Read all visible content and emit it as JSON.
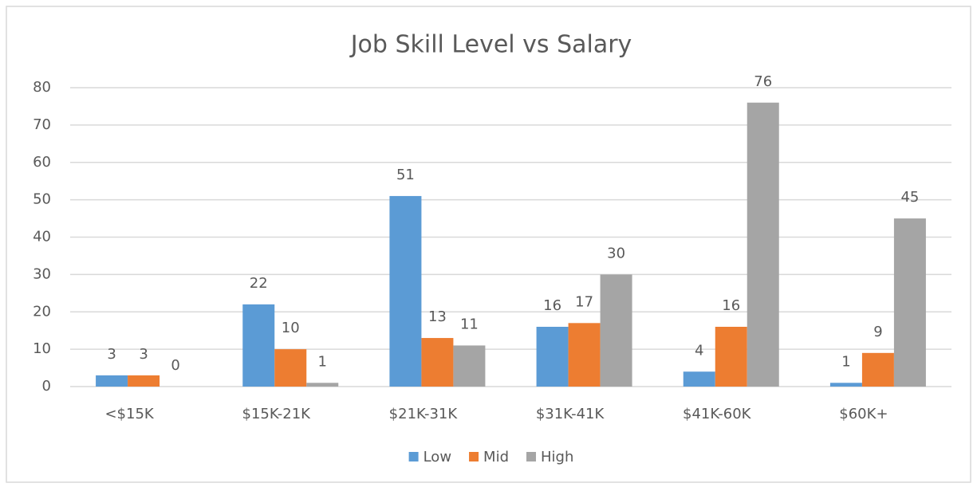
{
  "chart_data": {
    "type": "bar",
    "title": "Job Skill Level vs Salary",
    "categories": [
      "<$15K",
      "$15K-21K",
      "$21K-31K",
      "$31K-41K",
      "$41K-60K",
      "$60K+"
    ],
    "series": [
      {
        "name": "Low",
        "color": "#5b9bd5",
        "values": [
          3,
          22,
          51,
          16,
          4,
          1
        ]
      },
      {
        "name": "Mid",
        "color": "#ed7d31",
        "values": [
          3,
          10,
          13,
          17,
          16,
          9
        ]
      },
      {
        "name": "High",
        "color": "#a5a5a5",
        "values": [
          0,
          1,
          11,
          30,
          76,
          45
        ]
      }
    ],
    "ylim": [
      0,
      80
    ],
    "yticks": [
      0,
      10,
      20,
      30,
      40,
      50,
      60,
      70,
      80
    ],
    "grid": true,
    "legend": "bottom",
    "data_labels": true
  }
}
